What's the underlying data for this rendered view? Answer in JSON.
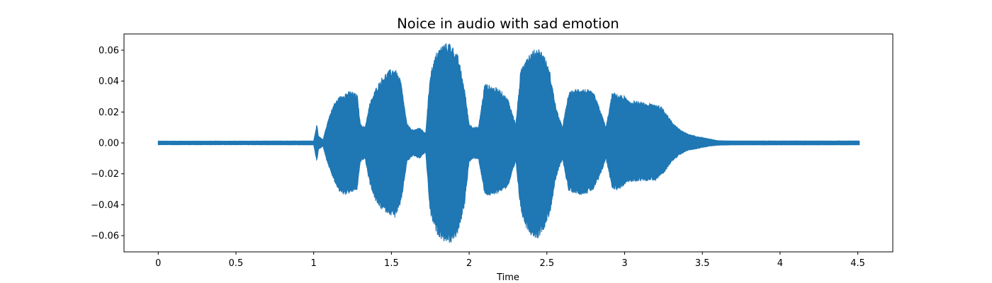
{
  "chart_data": {
    "type": "area",
    "title": "Noice in audio with sad emotion",
    "xlabel": "Time",
    "ylabel": "",
    "xlim": [
      -0.22,
      4.725
    ],
    "ylim": [
      -0.0705,
      0.0705
    ],
    "xticks": [
      0,
      0.5,
      1,
      1.5,
      2,
      2.5,
      3,
      3.5,
      4,
      4.5
    ],
    "xtick_labels": [
      "0",
      "0.5",
      "1",
      "1.5",
      "2",
      "2.5",
      "3",
      "3.5",
      "4",
      "4.5"
    ],
    "yticks": [
      0.06,
      0.04,
      0.02,
      0.0,
      -0.02,
      -0.04,
      -0.06
    ],
    "ytick_labels": [
      "0.06",
      "0.04",
      "0.02",
      "0.00",
      "−0.02",
      "−0.04",
      "−0.06"
    ],
    "grid": false,
    "color": "#1f77b4",
    "series": [
      {
        "time": [
          0.0,
          0.5,
          1.0,
          1.02,
          1.03,
          1.06,
          1.08,
          1.1,
          1.13,
          1.16,
          1.2,
          1.24,
          1.28,
          1.3,
          1.33,
          1.36,
          1.4,
          1.44,
          1.48,
          1.52,
          1.56,
          1.6,
          1.64,
          1.68,
          1.72,
          1.75,
          1.79,
          1.83,
          1.88,
          1.93,
          1.97,
          2.0,
          2.03,
          2.06,
          2.1,
          2.15,
          2.2,
          2.25,
          2.3,
          2.33,
          2.36,
          2.4,
          2.44,
          2.48,
          2.52,
          2.56,
          2.6,
          2.64,
          2.68,
          2.72,
          2.76,
          2.8,
          2.84,
          2.88,
          2.92,
          2.96,
          3.0,
          3.02,
          3.05,
          3.1,
          3.15,
          3.2,
          3.25,
          3.3,
          3.35,
          3.4,
          3.45,
          3.5,
          3.55,
          3.6,
          3.7,
          4.0,
          4.3,
          4.51
        ],
        "upper": [
          0.0012,
          0.0012,
          0.0013,
          0.012,
          0.0045,
          0.002,
          0.01,
          0.017,
          0.025,
          0.029,
          0.032,
          0.033,
          0.031,
          0.012,
          0.01,
          0.025,
          0.035,
          0.042,
          0.046,
          0.048,
          0.04,
          0.012,
          0.008,
          0.01,
          0.006,
          0.045,
          0.058,
          0.063,
          0.064,
          0.055,
          0.035,
          0.012,
          0.01,
          0.01,
          0.038,
          0.036,
          0.034,
          0.028,
          0.012,
          0.045,
          0.055,
          0.058,
          0.061,
          0.057,
          0.045,
          0.022,
          0.01,
          0.032,
          0.034,
          0.035,
          0.034,
          0.032,
          0.022,
          0.01,
          0.032,
          0.031,
          0.03,
          0.027,
          0.027,
          0.026,
          0.025,
          0.025,
          0.022,
          0.014,
          0.009,
          0.006,
          0.0045,
          0.0035,
          0.0025,
          0.0015,
          0.0013,
          0.0013,
          0.0013,
          0.0013
        ],
        "lower": [
          -0.0012,
          -0.0012,
          -0.0013,
          -0.012,
          -0.0045,
          -0.002,
          -0.01,
          -0.016,
          -0.024,
          -0.031,
          -0.033,
          -0.032,
          -0.03,
          -0.012,
          -0.01,
          -0.026,
          -0.038,
          -0.043,
          -0.045,
          -0.048,
          -0.04,
          -0.012,
          -0.008,
          -0.01,
          -0.006,
          -0.046,
          -0.058,
          -0.062,
          -0.064,
          -0.058,
          -0.04,
          -0.012,
          -0.01,
          -0.01,
          -0.033,
          -0.034,
          -0.031,
          -0.028,
          -0.012,
          -0.042,
          -0.053,
          -0.059,
          -0.061,
          -0.055,
          -0.045,
          -0.022,
          -0.01,
          -0.031,
          -0.032,
          -0.033,
          -0.032,
          -0.03,
          -0.022,
          -0.01,
          -0.029,
          -0.03,
          -0.027,
          -0.025,
          -0.025,
          -0.024,
          -0.024,
          -0.024,
          -0.02,
          -0.012,
          -0.008,
          -0.005,
          -0.004,
          -0.003,
          -0.002,
          -0.0015,
          -0.0013,
          -0.0013,
          -0.0013,
          -0.0013
        ]
      }
    ]
  }
}
